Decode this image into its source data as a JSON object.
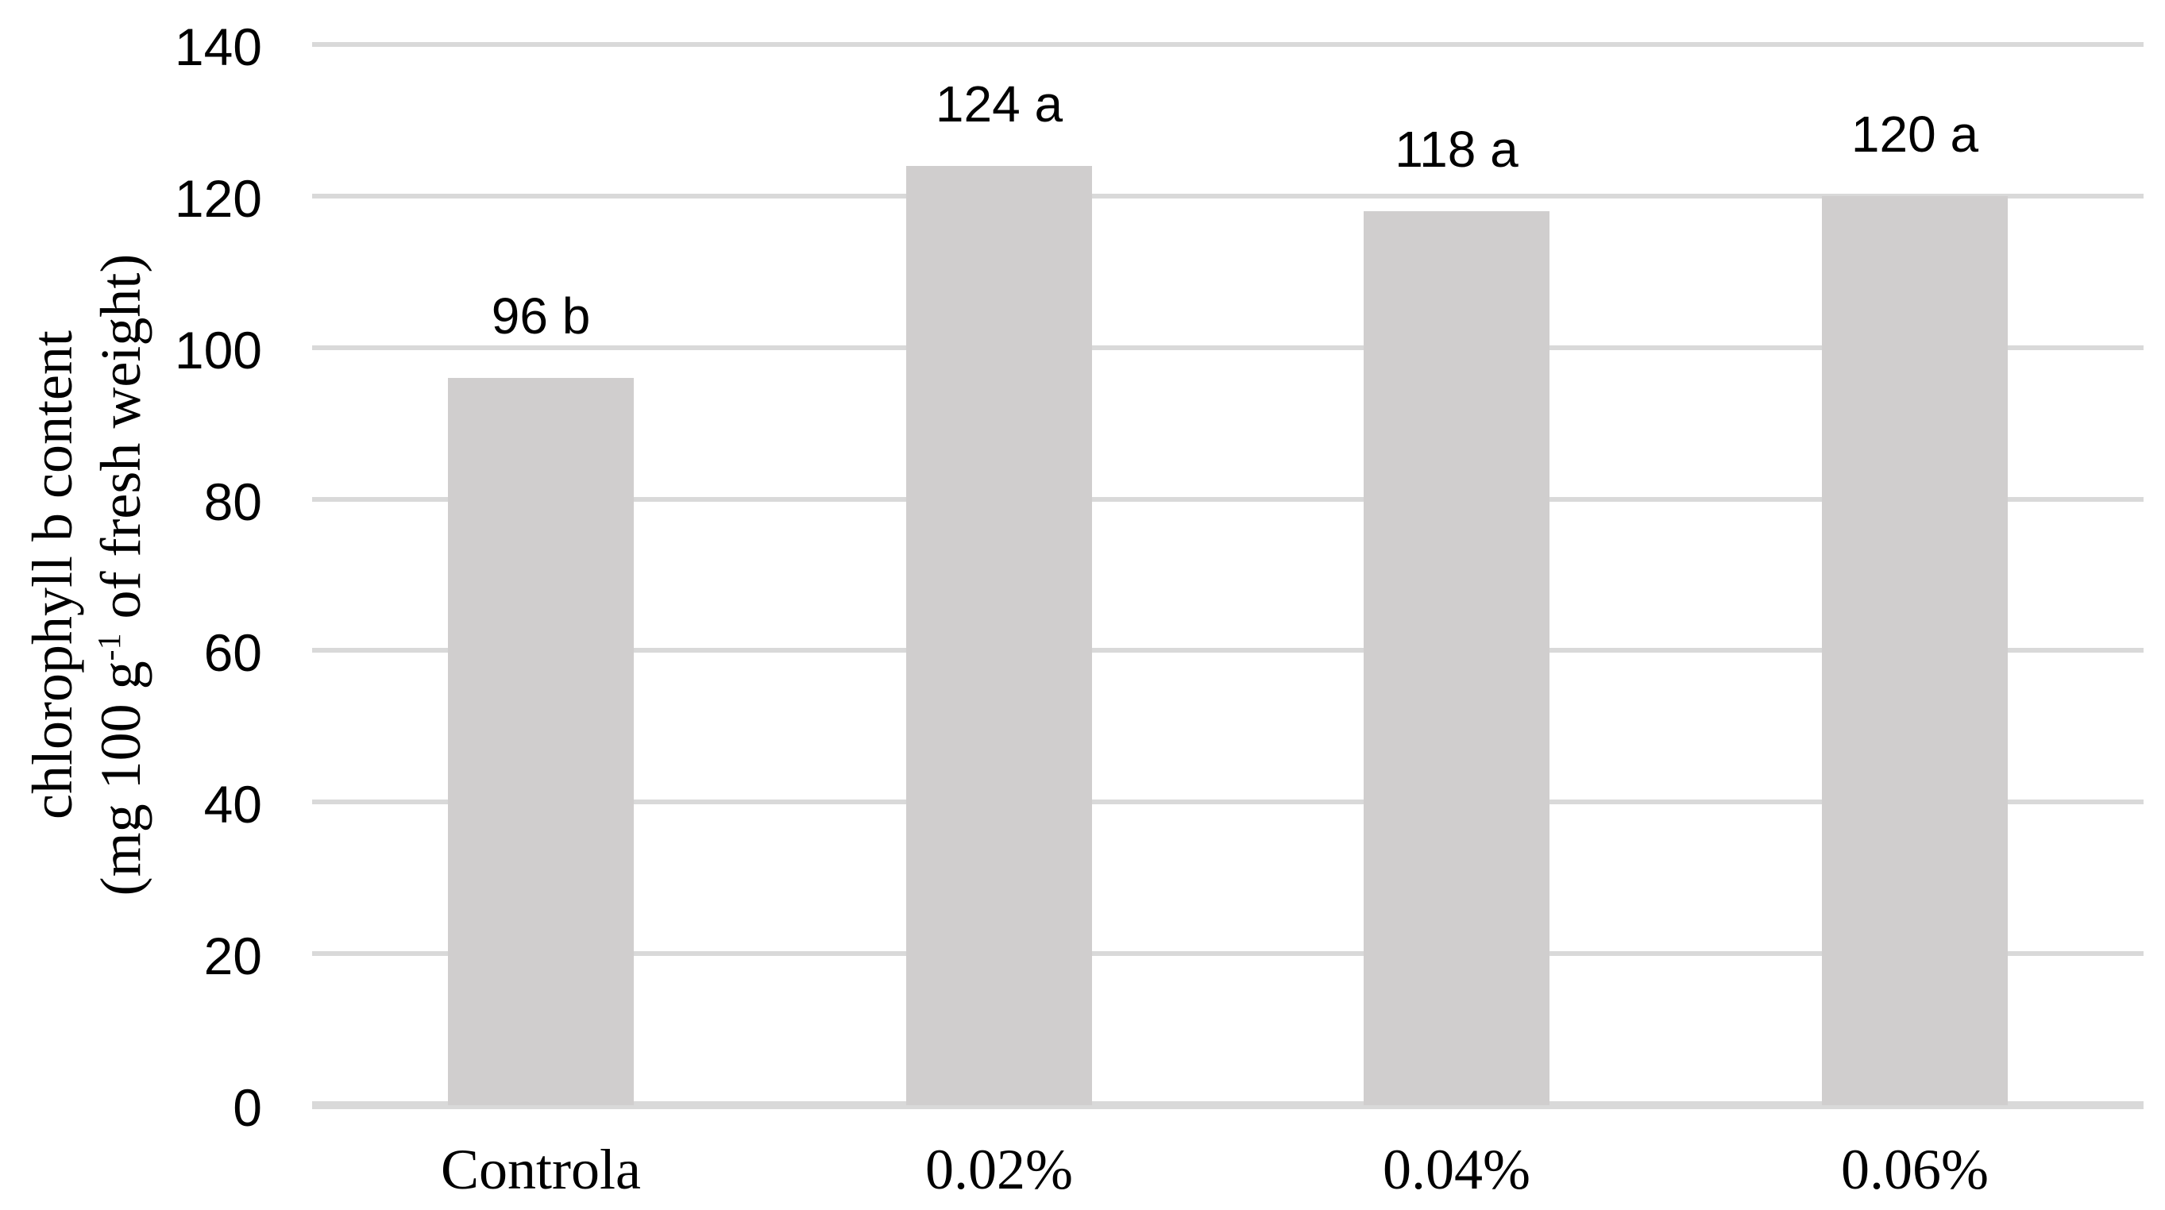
{
  "chart_data": {
    "type": "bar",
    "title": "",
    "categories": [
      "Controla",
      "0.02%",
      "0.04%",
      "0.06%"
    ],
    "values": [
      96,
      124,
      118,
      120
    ],
    "value_labels": [
      "96 b",
      "124 a",
      "118 a",
      "120 a"
    ],
    "yticks": [
      0,
      20,
      40,
      60,
      80,
      100,
      120,
      140
    ],
    "ylim": [
      0,
      140
    ],
    "xlabel": "",
    "ylabel": {
      "line1": "chlorophyll b content",
      "line2_prefix": "(mg 100 g",
      "line2_superscript": "-1",
      "line2_suffix": " of fresh weight)"
    },
    "legend": "none",
    "grid": "horizontal",
    "colors": {
      "bar": "#d0cece",
      "gridline": "#d9d9d9",
      "axis_line": "#d9d9d9",
      "text": "#000000"
    }
  }
}
